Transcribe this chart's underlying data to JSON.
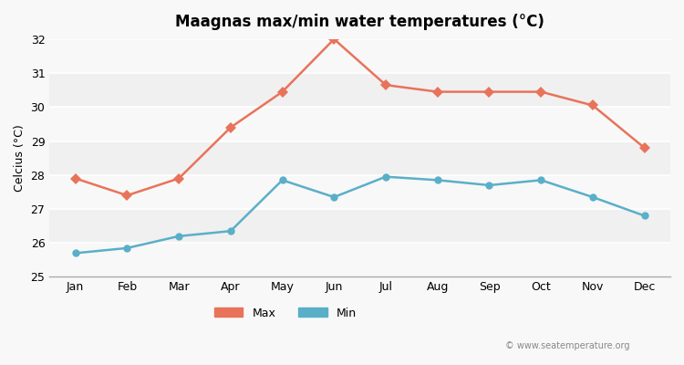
{
  "title": "Maagnas max/min water temperatures (°C)",
  "ylabel": "Celcius (°C)",
  "months": [
    "Jan",
    "Feb",
    "Mar",
    "Apr",
    "May",
    "Jun",
    "Jul",
    "Aug",
    "Sep",
    "Oct",
    "Nov",
    "Dec"
  ],
  "max_values": [
    27.9,
    27.4,
    27.9,
    29.4,
    30.45,
    32.0,
    30.65,
    30.45,
    30.45,
    30.45,
    30.05,
    28.8
  ],
  "min_values": [
    25.7,
    25.85,
    26.2,
    26.35,
    27.85,
    27.35,
    27.95,
    27.85,
    27.7,
    27.85,
    27.35,
    26.8
  ],
  "max_color": "#e8735a",
  "min_color": "#5aafc8",
  "background_color": "#f0f0f0",
  "plot_bg_color": "#f0f0f0",
  "ylim": [
    25,
    32
  ],
  "yticks": [
    25,
    26,
    27,
    28,
    29,
    30,
    31,
    32
  ],
  "watermark": "© www.seatemperature.org",
  "legend_max": "Max",
  "legend_min": "Min"
}
